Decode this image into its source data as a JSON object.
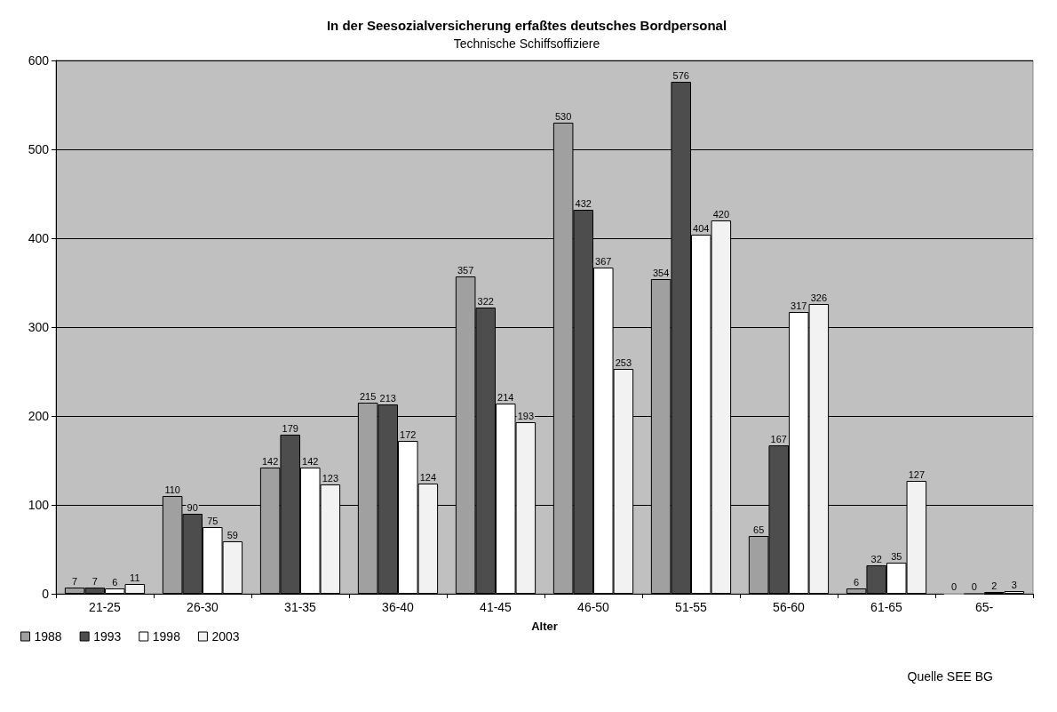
{
  "chart_data": {
    "type": "bar",
    "title": "In der Seesozialversicherung erfaßtes deutsches Bordpersonal",
    "subtitle": "Technische Schiffsoffiziere",
    "xlabel": "Alter",
    "categories": [
      "21-25",
      "26-30",
      "31-35",
      "36-40",
      "41-45",
      "46-50",
      "51-55",
      "56-60",
      "61-65",
      "65-"
    ],
    "series": [
      {
        "name": "1988",
        "color": "#a0a0a0",
        "values": [
          7,
          110,
          142,
          215,
          357,
          530,
          354,
          65,
          6,
          0
        ]
      },
      {
        "name": "1993",
        "color": "#4d4d4d",
        "values": [
          7,
          90,
          179,
          213,
          322,
          432,
          576,
          167,
          32,
          0
        ]
      },
      {
        "name": "1998",
        "color": "#ffffff",
        "values": [
          6,
          75,
          142,
          172,
          214,
          367,
          404,
          317,
          35,
          2
        ]
      },
      {
        "name": "2003",
        "color": "#f2f2f2",
        "values": [
          11,
          59,
          123,
          124,
          193,
          253,
          420,
          326,
          127,
          3
        ]
      }
    ],
    "ylim": [
      0,
      600
    ],
    "yticks": [
      0,
      100,
      200,
      300,
      400,
      500,
      600
    ],
    "grid": "y",
    "legend": "bottom left",
    "data_labels": true,
    "annotations": [
      "Quelle SEE BG"
    ]
  }
}
